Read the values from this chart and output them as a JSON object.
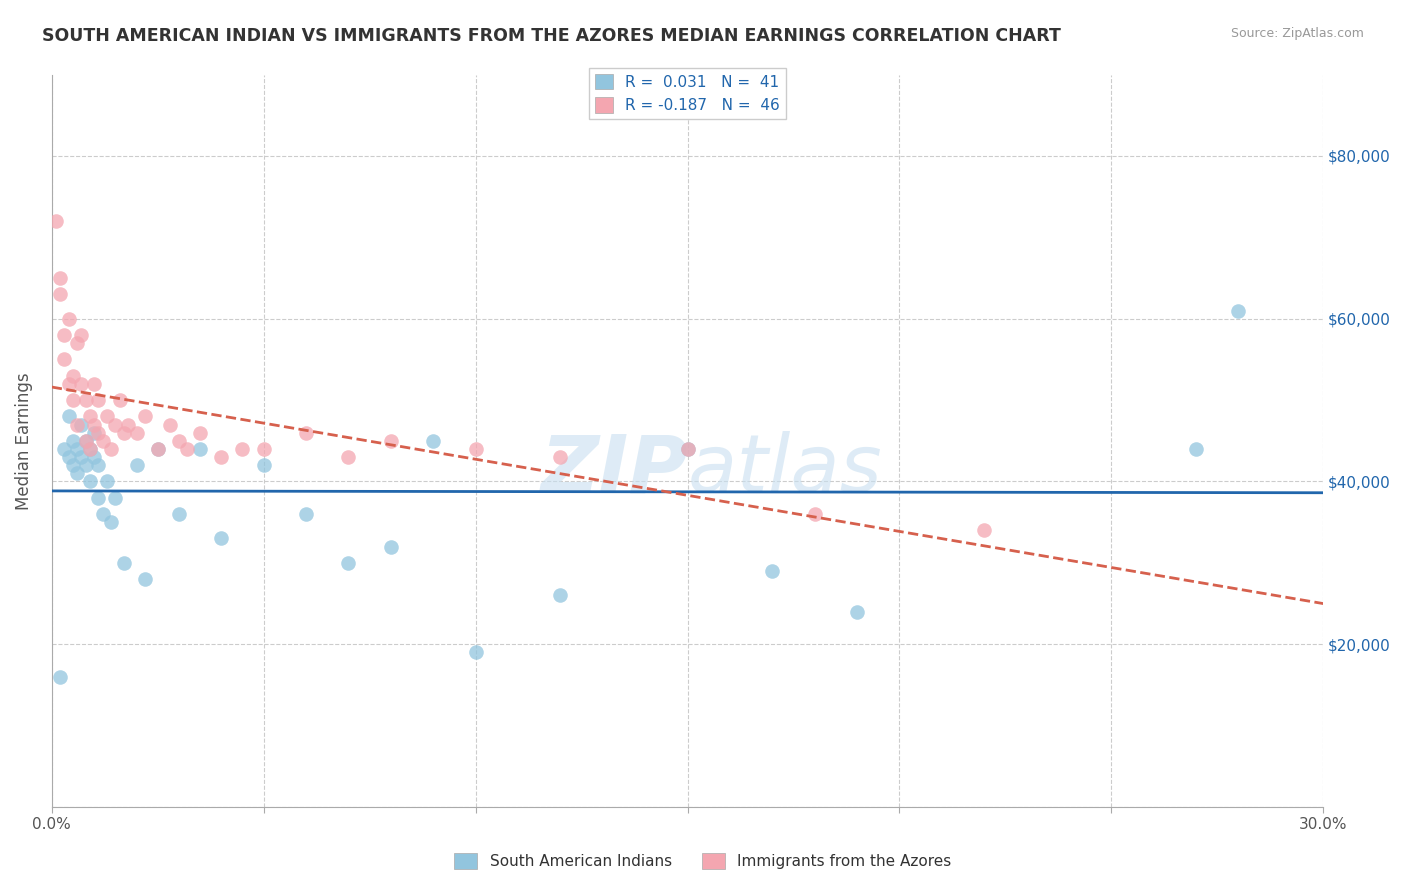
{
  "title": "SOUTH AMERICAN INDIAN VS IMMIGRANTS FROM THE AZORES MEDIAN EARNINGS CORRELATION CHART",
  "source": "Source: ZipAtlas.com",
  "ylabel": "Median Earnings",
  "xlim": [
    0.0,
    0.3
  ],
  "ylim": [
    0,
    90000
  ],
  "yticks": [
    0,
    20000,
    40000,
    60000,
    80000
  ],
  "xticks": [
    0.0,
    0.05,
    0.1,
    0.15,
    0.2,
    0.25,
    0.3
  ],
  "xtick_labels": [
    "0.0%",
    "",
    "",
    "",
    "",
    "",
    "30.0%"
  ],
  "blue_color": "#92c5de",
  "pink_color": "#f4a6b0",
  "blue_line_color": "#2166ac",
  "pink_line_color": "#d6604d",
  "legend_text_color": "#2166ac",
  "blue_R": 0.031,
  "blue_N": 41,
  "pink_R": -0.187,
  "pink_N": 46,
  "grid_color": "#cccccc",
  "title_color": "#333333",
  "axis_label_color": "#555555",
  "right_tick_color": "#2166ac",
  "blue_scatter_x": [
    0.002,
    0.003,
    0.004,
    0.004,
    0.005,
    0.005,
    0.006,
    0.006,
    0.007,
    0.007,
    0.008,
    0.008,
    0.009,
    0.009,
    0.01,
    0.01,
    0.011,
    0.011,
    0.012,
    0.013,
    0.014,
    0.015,
    0.017,
    0.02,
    0.022,
    0.025,
    0.03,
    0.035,
    0.04,
    0.05,
    0.06,
    0.07,
    0.08,
    0.09,
    0.1,
    0.12,
    0.15,
    0.17,
    0.19,
    0.27,
    0.28
  ],
  "blue_scatter_y": [
    16000,
    44000,
    43000,
    48000,
    45000,
    42000,
    44000,
    41000,
    47000,
    43000,
    42000,
    45000,
    40000,
    44000,
    46000,
    43000,
    42000,
    38000,
    36000,
    40000,
    35000,
    38000,
    30000,
    42000,
    28000,
    44000,
    36000,
    44000,
    33000,
    42000,
    36000,
    30000,
    32000,
    45000,
    19000,
    26000,
    44000,
    29000,
    24000,
    44000,
    61000
  ],
  "pink_scatter_x": [
    0.001,
    0.002,
    0.002,
    0.003,
    0.003,
    0.004,
    0.004,
    0.005,
    0.005,
    0.006,
    0.006,
    0.007,
    0.007,
    0.008,
    0.008,
    0.009,
    0.009,
    0.01,
    0.01,
    0.011,
    0.011,
    0.012,
    0.013,
    0.014,
    0.015,
    0.016,
    0.017,
    0.018,
    0.02,
    0.022,
    0.025,
    0.028,
    0.03,
    0.032,
    0.035,
    0.04,
    0.045,
    0.05,
    0.06,
    0.07,
    0.08,
    0.1,
    0.12,
    0.15,
    0.18,
    0.22
  ],
  "pink_scatter_y": [
    72000,
    65000,
    63000,
    58000,
    55000,
    52000,
    60000,
    50000,
    53000,
    57000,
    47000,
    58000,
    52000,
    50000,
    45000,
    48000,
    44000,
    47000,
    52000,
    50000,
    46000,
    45000,
    48000,
    44000,
    47000,
    50000,
    46000,
    47000,
    46000,
    48000,
    44000,
    47000,
    45000,
    44000,
    46000,
    43000,
    44000,
    44000,
    46000,
    43000,
    45000,
    44000,
    43000,
    44000,
    36000,
    34000
  ],
  "watermark_text": "ZIP atlas",
  "watermark_color": "#c8dff0",
  "watermark_alpha": 0.6
}
